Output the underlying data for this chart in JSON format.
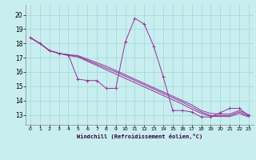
{
  "xlabel": "Windchill (Refroidissement éolien,°C)",
  "bg_color": "#c8eef0",
  "grid_color": "#a8d8dc",
  "line_color": "#993399",
  "x_ticks": [
    0,
    1,
    2,
    3,
    4,
    5,
    6,
    7,
    8,
    9,
    10,
    11,
    12,
    13,
    14,
    15,
    16,
    17,
    18,
    19,
    20,
    21,
    22,
    23
  ],
  "y_ticks": [
    13,
    14,
    15,
    16,
    17,
    18,
    19,
    20
  ],
  "ylim": [
    12.3,
    20.7
  ],
  "xlim": [
    -0.5,
    23.5
  ],
  "main_series": [
    18.4,
    18.0,
    17.5,
    17.3,
    17.2,
    15.5,
    15.4,
    15.4,
    14.85,
    14.85,
    18.1,
    19.75,
    19.35,
    17.8,
    15.65,
    13.3,
    13.3,
    13.2,
    12.85,
    12.85,
    13.15,
    13.45,
    13.45,
    12.95
  ],
  "diag1": [
    18.4,
    18.0,
    17.5,
    17.3,
    17.2,
    17.15,
    16.9,
    16.65,
    16.4,
    16.1,
    15.8,
    15.5,
    15.2,
    14.9,
    14.6,
    14.3,
    14.0,
    13.7,
    13.3,
    13.1,
    13.05,
    13.05,
    13.3,
    13.0
  ],
  "diag2": [
    18.4,
    18.0,
    17.5,
    17.3,
    17.2,
    17.1,
    16.82,
    16.55,
    16.27,
    16.0,
    15.7,
    15.4,
    15.1,
    14.8,
    14.5,
    14.2,
    13.9,
    13.55,
    13.2,
    12.95,
    12.95,
    12.95,
    13.2,
    12.9
  ],
  "diag3": [
    18.4,
    18.0,
    17.5,
    17.3,
    17.15,
    17.05,
    16.75,
    16.45,
    16.15,
    15.85,
    15.55,
    15.25,
    14.95,
    14.65,
    14.35,
    14.05,
    13.75,
    13.4,
    13.1,
    12.9,
    12.88,
    12.88,
    13.1,
    12.85
  ]
}
